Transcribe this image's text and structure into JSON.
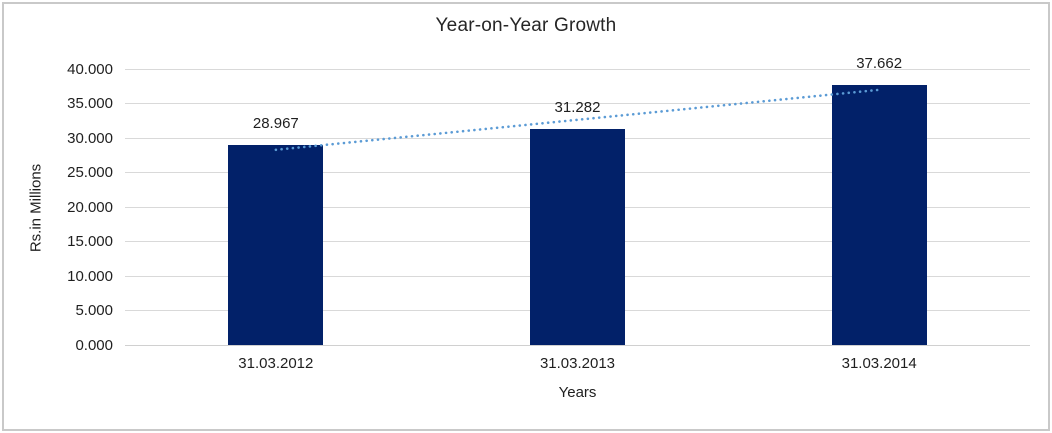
{
  "chart_data": {
    "type": "bar",
    "title": "Year-on-Year Growth",
    "xlabel": "Years",
    "ylabel": "Rs.in Millions",
    "categories": [
      "31.03.2012",
      "31.03.2013",
      "31.03.2014"
    ],
    "values": [
      28.967,
      31.282,
      37.662
    ],
    "value_labels": [
      "28.967",
      "31.282",
      "37.662"
    ],
    "ylim": [
      0,
      40
    ],
    "ytick_step": 5,
    "ytick_labels": [
      "0.000",
      "5.000",
      "10.000",
      "15.000",
      "20.000",
      "25.000",
      "30.000",
      "35.000",
      "40.000"
    ],
    "grid": true,
    "legend": "none",
    "trendline": {
      "type": "linear",
      "style": "dotted"
    },
    "colors": {
      "bar": "#022169",
      "trendline": "#5b9bd5",
      "gridline": "#d9d9d9",
      "baseline": "#d0d0d0",
      "text": "#1f1f1f",
      "frame_border": "#c9c9c9",
      "background": "#ffffff"
    }
  }
}
